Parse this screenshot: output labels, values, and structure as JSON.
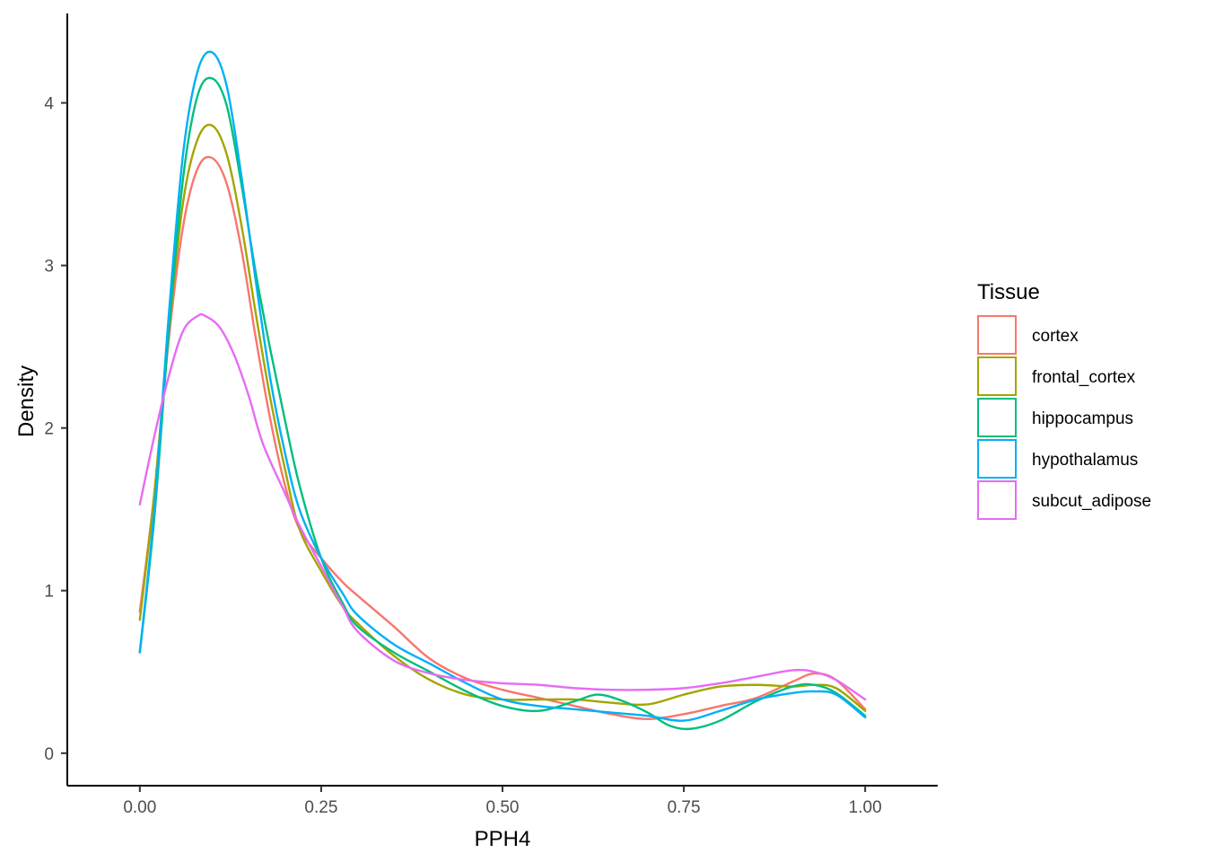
{
  "chart_data": {
    "type": "line",
    "title": "",
    "xlabel": "PPH4",
    "ylabel": "Density",
    "xlim": [
      -0.1,
      1.1
    ],
    "ylim": [
      -0.2,
      4.55
    ],
    "x_ticks": [
      0.0,
      0.25,
      0.5,
      0.75,
      1.0
    ],
    "x_tick_labels": [
      "0.00",
      "0.25",
      "0.50",
      "0.75",
      "1.00"
    ],
    "y_ticks": [
      0,
      1,
      2,
      3,
      4
    ],
    "y_tick_labels": [
      "0",
      "1",
      "2",
      "3",
      "4"
    ],
    "grid": false,
    "legend": {
      "title": "Tissue",
      "position": "right"
    },
    "series": [
      {
        "name": "cortex",
        "color": "#F8766D",
        "points": [
          [
            0.0,
            0.87
          ],
          [
            0.02,
            1.6
          ],
          [
            0.04,
            2.55
          ],
          [
            0.06,
            3.25
          ],
          [
            0.08,
            3.6
          ],
          [
            0.1,
            3.66
          ],
          [
            0.12,
            3.5
          ],
          [
            0.14,
            3.1
          ],
          [
            0.16,
            2.55
          ],
          [
            0.18,
            2.05
          ],
          [
            0.2,
            1.65
          ],
          [
            0.22,
            1.38
          ],
          [
            0.25,
            1.2
          ],
          [
            0.28,
            1.05
          ],
          [
            0.3,
            0.97
          ],
          [
            0.35,
            0.78
          ],
          [
            0.4,
            0.58
          ],
          [
            0.45,
            0.46
          ],
          [
            0.5,
            0.39
          ],
          [
            0.55,
            0.34
          ],
          [
            0.6,
            0.29
          ],
          [
            0.65,
            0.24
          ],
          [
            0.7,
            0.21
          ],
          [
            0.75,
            0.24
          ],
          [
            0.8,
            0.29
          ],
          [
            0.85,
            0.34
          ],
          [
            0.9,
            0.44
          ],
          [
            0.93,
            0.49
          ],
          [
            0.96,
            0.45
          ],
          [
            1.0,
            0.27
          ]
        ]
      },
      {
        "name": "frontal_cortex",
        "color": "#A3A500",
        "points": [
          [
            0.0,
            0.82
          ],
          [
            0.02,
            1.6
          ],
          [
            0.04,
            2.6
          ],
          [
            0.06,
            3.4
          ],
          [
            0.08,
            3.78
          ],
          [
            0.1,
            3.86
          ],
          [
            0.12,
            3.68
          ],
          [
            0.14,
            3.25
          ],
          [
            0.16,
            2.7
          ],
          [
            0.18,
            2.18
          ],
          [
            0.2,
            1.75
          ],
          [
            0.22,
            1.38
          ],
          [
            0.25,
            1.12
          ],
          [
            0.28,
            0.9
          ],
          [
            0.3,
            0.8
          ],
          [
            0.35,
            0.6
          ],
          [
            0.4,
            0.45
          ],
          [
            0.45,
            0.36
          ],
          [
            0.5,
            0.33
          ],
          [
            0.55,
            0.33
          ],
          [
            0.6,
            0.33
          ],
          [
            0.65,
            0.31
          ],
          [
            0.7,
            0.3
          ],
          [
            0.75,
            0.36
          ],
          [
            0.8,
            0.41
          ],
          [
            0.85,
            0.42
          ],
          [
            0.9,
            0.41
          ],
          [
            0.93,
            0.42
          ],
          [
            0.96,
            0.4
          ],
          [
            1.0,
            0.26
          ]
        ]
      },
      {
        "name": "hippocampus",
        "color": "#00BF7D",
        "points": [
          [
            0.0,
            0.62
          ],
          [
            0.02,
            1.45
          ],
          [
            0.04,
            2.6
          ],
          [
            0.06,
            3.55
          ],
          [
            0.08,
            4.05
          ],
          [
            0.1,
            4.15
          ],
          [
            0.12,
            3.98
          ],
          [
            0.14,
            3.5
          ],
          [
            0.16,
            2.95
          ],
          [
            0.18,
            2.48
          ],
          [
            0.2,
            2.05
          ],
          [
            0.22,
            1.65
          ],
          [
            0.25,
            1.2
          ],
          [
            0.28,
            0.92
          ],
          [
            0.3,
            0.78
          ],
          [
            0.35,
            0.62
          ],
          [
            0.4,
            0.5
          ],
          [
            0.45,
            0.38
          ],
          [
            0.5,
            0.29
          ],
          [
            0.55,
            0.26
          ],
          [
            0.6,
            0.32
          ],
          [
            0.63,
            0.36
          ],
          [
            0.66,
            0.33
          ],
          [
            0.7,
            0.25
          ],
          [
            0.73,
            0.17
          ],
          [
            0.76,
            0.15
          ],
          [
            0.8,
            0.2
          ],
          [
            0.85,
            0.32
          ],
          [
            0.9,
            0.41
          ],
          [
            0.93,
            0.42
          ],
          [
            0.96,
            0.37
          ],
          [
            1.0,
            0.23
          ]
        ]
      },
      {
        "name": "hypothalamus",
        "color": "#00B0F6",
        "points": [
          [
            0.0,
            0.62
          ],
          [
            0.02,
            1.5
          ],
          [
            0.04,
            2.7
          ],
          [
            0.06,
            3.7
          ],
          [
            0.08,
            4.2
          ],
          [
            0.1,
            4.31
          ],
          [
            0.12,
            4.1
          ],
          [
            0.14,
            3.55
          ],
          [
            0.16,
            2.9
          ],
          [
            0.18,
            2.3
          ],
          [
            0.2,
            1.85
          ],
          [
            0.22,
            1.5
          ],
          [
            0.25,
            1.2
          ],
          [
            0.28,
            0.98
          ],
          [
            0.3,
            0.85
          ],
          [
            0.35,
            0.67
          ],
          [
            0.4,
            0.55
          ],
          [
            0.45,
            0.43
          ],
          [
            0.5,
            0.33
          ],
          [
            0.55,
            0.29
          ],
          [
            0.6,
            0.27
          ],
          [
            0.65,
            0.25
          ],
          [
            0.7,
            0.23
          ],
          [
            0.75,
            0.2
          ],
          [
            0.8,
            0.26
          ],
          [
            0.85,
            0.33
          ],
          [
            0.9,
            0.37
          ],
          [
            0.93,
            0.38
          ],
          [
            0.96,
            0.36
          ],
          [
            1.0,
            0.22
          ]
        ]
      },
      {
        "name": "subcut_adipose",
        "color": "#E76BF3",
        "points": [
          [
            0.0,
            1.53
          ],
          [
            0.02,
            1.95
          ],
          [
            0.04,
            2.32
          ],
          [
            0.06,
            2.6
          ],
          [
            0.08,
            2.69
          ],
          [
            0.09,
            2.69
          ],
          [
            0.11,
            2.62
          ],
          [
            0.13,
            2.45
          ],
          [
            0.15,
            2.2
          ],
          [
            0.17,
            1.9
          ],
          [
            0.2,
            1.6
          ],
          [
            0.22,
            1.4
          ],
          [
            0.25,
            1.15
          ],
          [
            0.28,
            0.9
          ],
          [
            0.3,
            0.75
          ],
          [
            0.35,
            0.57
          ],
          [
            0.4,
            0.49
          ],
          [
            0.45,
            0.45
          ],
          [
            0.5,
            0.43
          ],
          [
            0.55,
            0.42
          ],
          [
            0.6,
            0.4
          ],
          [
            0.65,
            0.39
          ],
          [
            0.7,
            0.39
          ],
          [
            0.75,
            0.4
          ],
          [
            0.8,
            0.43
          ],
          [
            0.85,
            0.47
          ],
          [
            0.9,
            0.51
          ],
          [
            0.93,
            0.5
          ],
          [
            0.96,
            0.45
          ],
          [
            1.0,
            0.33
          ]
        ]
      }
    ]
  }
}
